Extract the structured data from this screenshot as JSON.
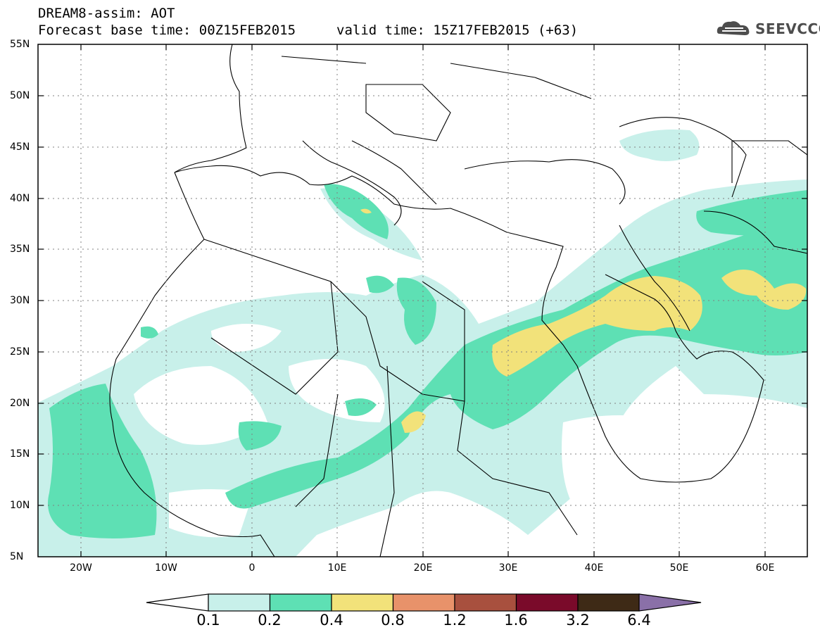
{
  "title": {
    "line1": "DREAM8-assim: AOT",
    "line2": "Forecast base time: 00Z15FEB2015",
    "valid": "valid time: 15Z17FEB2015 (+63)"
  },
  "logo": {
    "icon": "cloud-icon",
    "text": "SEEVCCC"
  },
  "map": {
    "lon_range": [
      -25,
      65
    ],
    "lat_range": [
      5,
      55
    ],
    "lat_labels": [
      "55N",
      "50N",
      "45N",
      "40N",
      "35N",
      "30N",
      "25N",
      "20N",
      "15N",
      "10N",
      "5N"
    ],
    "lon_labels": [
      "20W",
      "10W",
      "0",
      "10E",
      "20E",
      "30E",
      "40E",
      "50E",
      "60E"
    ]
  },
  "colorbar": {
    "colors": [
      "#c8f0ea",
      "#5ee0b4",
      "#f2e27a",
      "#e8926a",
      "#a8503e",
      "#7a0a2a",
      "#3e2a16",
      "#8a70a8"
    ],
    "labels": [
      "0.1",
      "0.2",
      "0.4",
      "0.8",
      "1.2",
      "1.6",
      "3.2",
      "6.4"
    ]
  }
}
